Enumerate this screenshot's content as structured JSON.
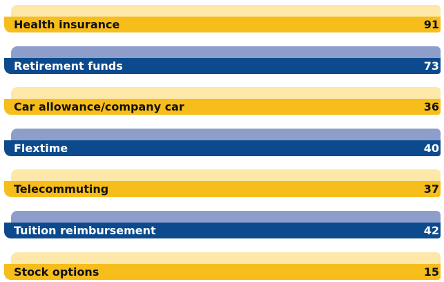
{
  "items": [
    {
      "label": "Health insurance",
      "value": "91"
    },
    {
      "label": "Retirement funds",
      "value": "73"
    },
    {
      "label": "Car allowance/company car",
      "value": "36"
    },
    {
      "label": "Flextime",
      "value": "40"
    },
    {
      "label": "Telecommuting",
      "value": "37"
    },
    {
      "label": "Tuition reimbursement",
      "value": "42"
    },
    {
      "label": "Stock options",
      "value": "15"
    }
  ]
}
